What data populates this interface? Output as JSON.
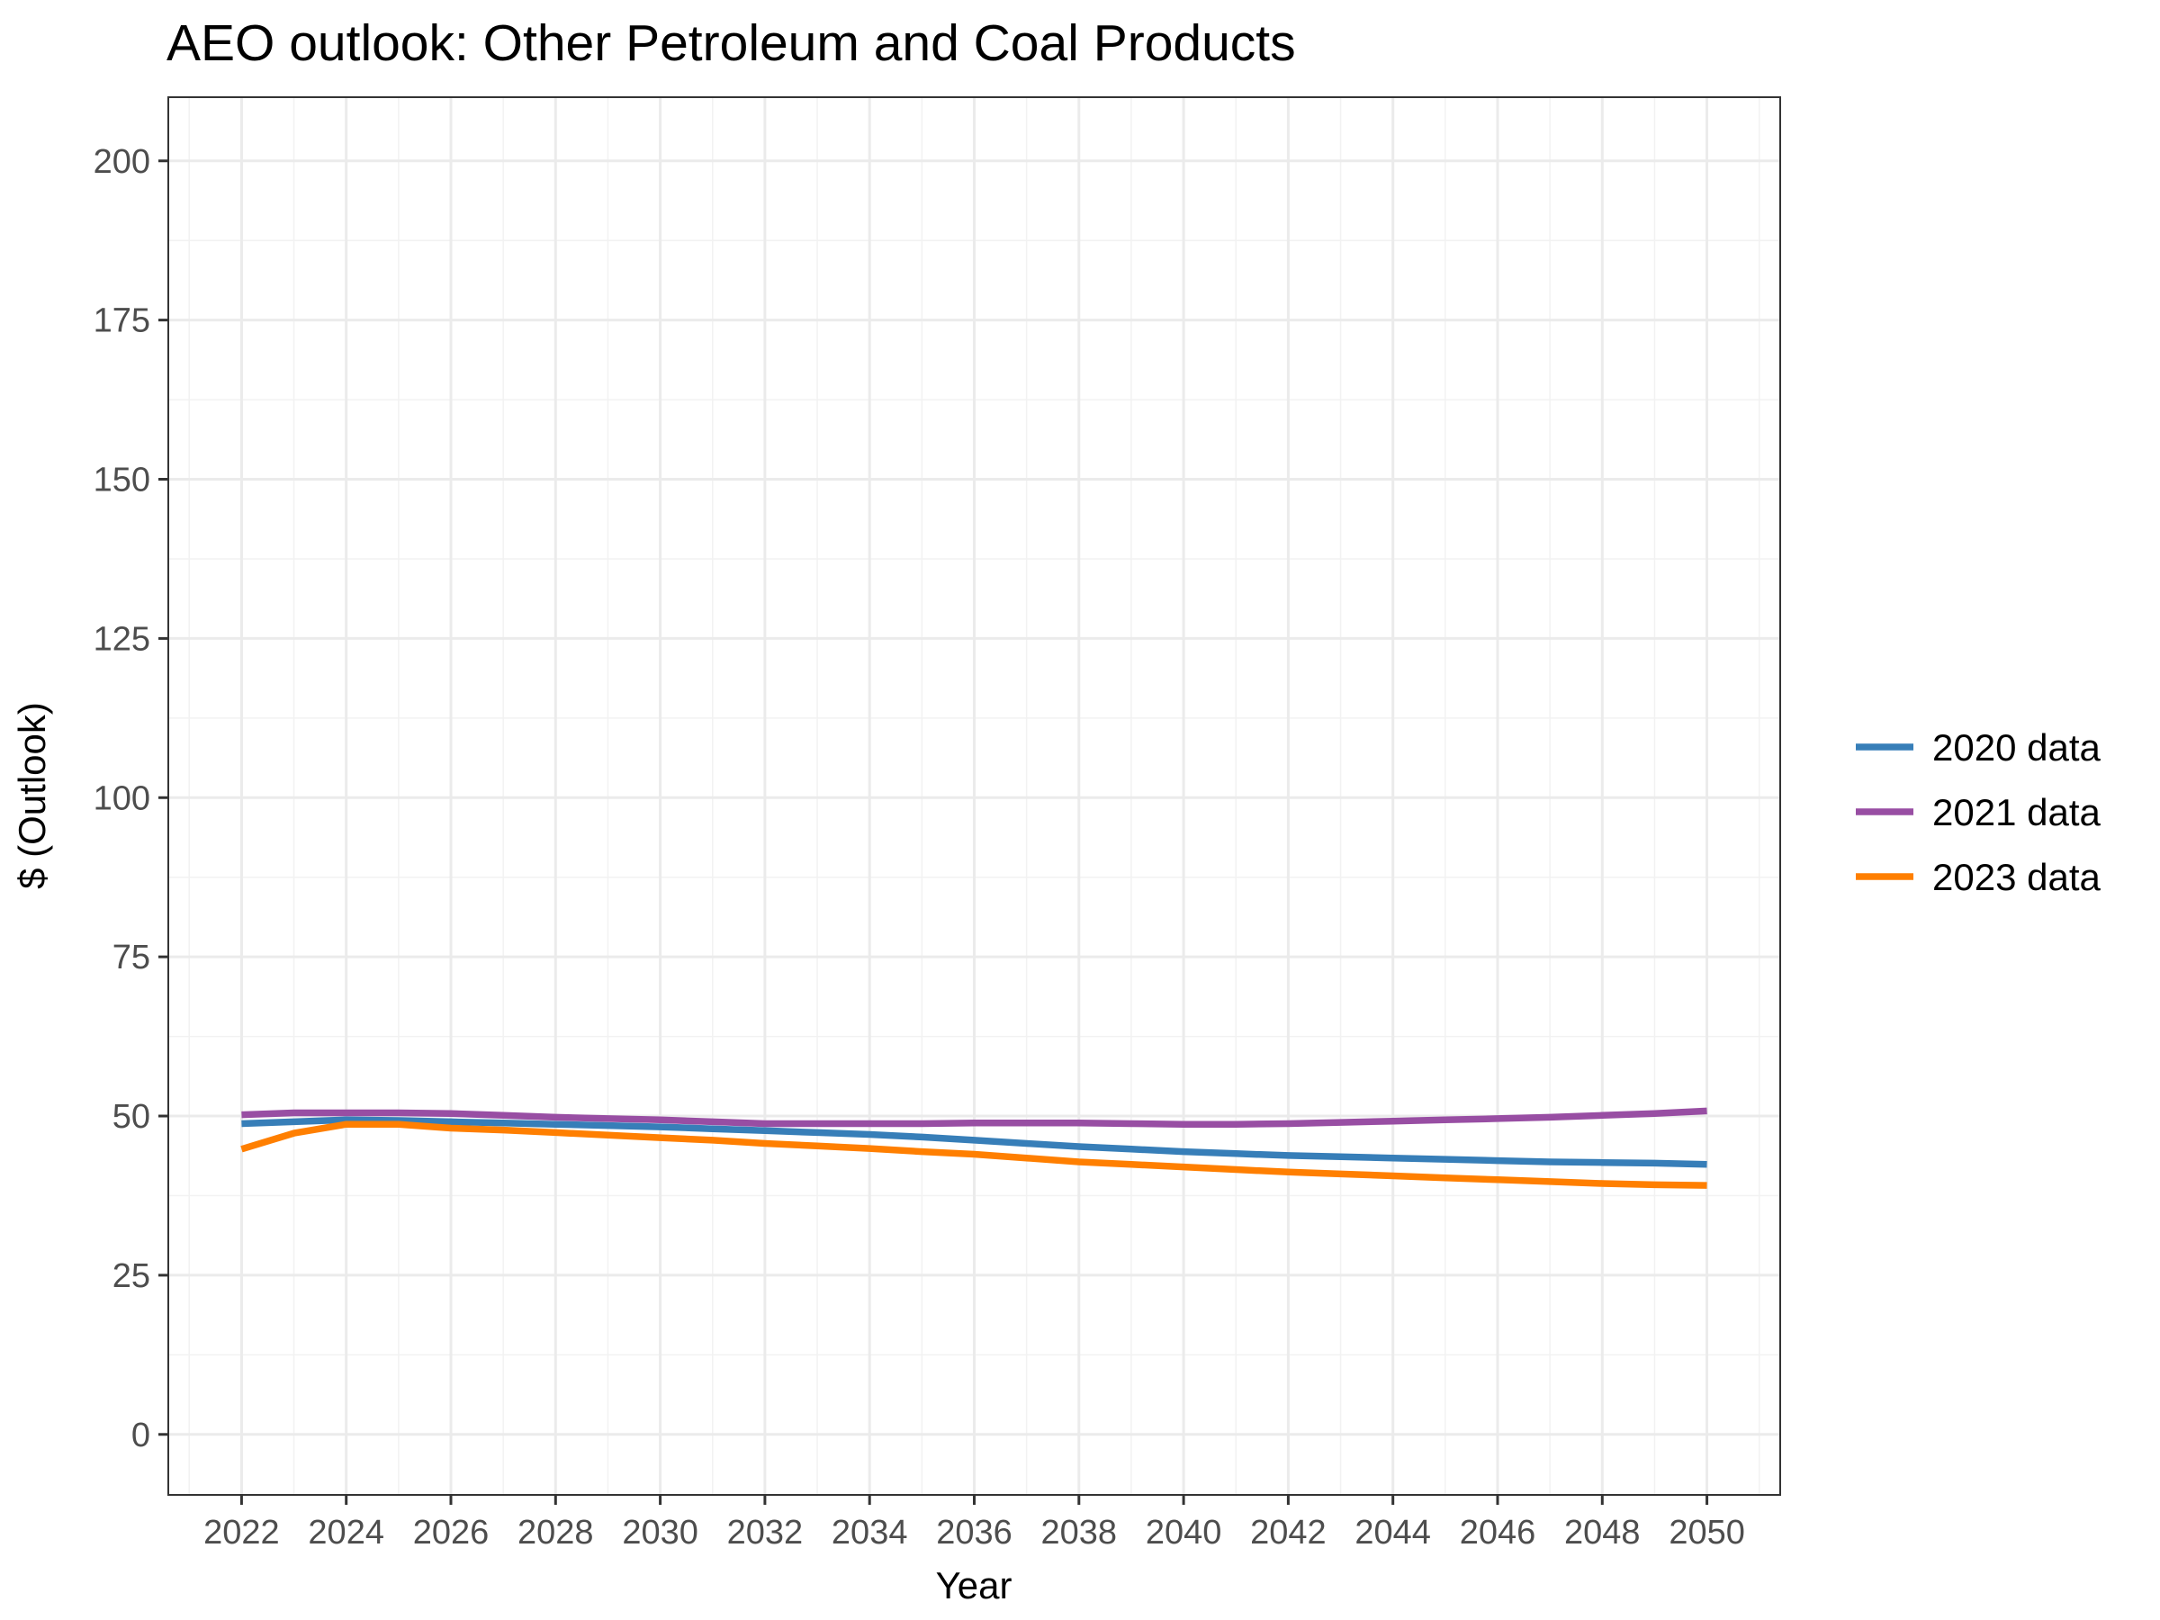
{
  "chart_data": {
    "type": "line",
    "title": "AEO outlook: Other Petroleum and Coal Products",
    "xlabel": "Year",
    "ylabel": "$ (Outlook)",
    "xlim": [
      2020.6,
      2051.4
    ],
    "ylim": [
      -9.5,
      210
    ],
    "x_ticks": [
      2022,
      2024,
      2026,
      2028,
      2030,
      2032,
      2034,
      2036,
      2038,
      2040,
      2042,
      2044,
      2046,
      2048,
      2050
    ],
    "y_ticks": [
      0,
      25,
      50,
      75,
      100,
      125,
      150,
      175,
      200
    ],
    "grid": true,
    "legend_position": "right",
    "x": [
      2022,
      2023,
      2024,
      2025,
      2026,
      2027,
      2028,
      2029,
      2030,
      2031,
      2032,
      2033,
      2034,
      2035,
      2036,
      2037,
      2038,
      2039,
      2040,
      2041,
      2042,
      2043,
      2044,
      2045,
      2046,
      2047,
      2048,
      2049,
      2050
    ],
    "series": [
      {
        "name": "2020 data",
        "color": "#377eb8",
        "values": [
          48.8,
          49.1,
          49.4,
          49.3,
          49.1,
          48.9,
          48.7,
          48.5,
          48.3,
          48.0,
          47.7,
          47.4,
          47.1,
          46.7,
          46.2,
          45.7,
          45.2,
          44.8,
          44.4,
          44.1,
          43.8,
          43.6,
          43.4,
          43.2,
          43.0,
          42.8,
          42.7,
          42.6,
          42.4
        ]
      },
      {
        "name": "2021 data",
        "color": "#984ea3",
        "values": [
          50.2,
          50.5,
          50.5,
          50.5,
          50.4,
          50.1,
          49.8,
          49.6,
          49.4,
          49.1,
          48.8,
          48.8,
          48.8,
          48.8,
          48.9,
          48.9,
          48.9,
          48.8,
          48.7,
          48.7,
          48.8,
          49.0,
          49.2,
          49.4,
          49.6,
          49.8,
          50.1,
          50.4,
          50.8
        ]
      },
      {
        "name": "2023 data",
        "color": "#ff7f00",
        "values": [
          44.8,
          47.3,
          48.7,
          48.7,
          48.1,
          47.8,
          47.4,
          47.0,
          46.6,
          46.2,
          45.7,
          45.3,
          44.9,
          44.4,
          44.0,
          43.4,
          42.8,
          42.4,
          42.0,
          41.6,
          41.2,
          40.9,
          40.6,
          40.3,
          40.0,
          39.7,
          39.4,
          39.2,
          39.1
        ]
      }
    ]
  }
}
